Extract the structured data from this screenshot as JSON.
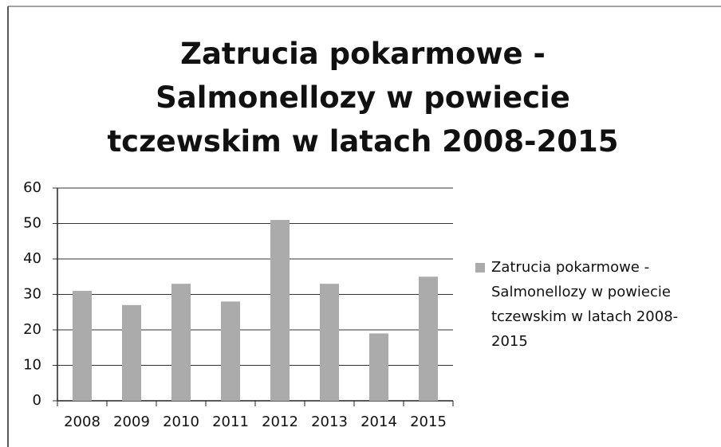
{
  "chart_data": {
    "type": "bar",
    "title": "Zatrucia pokarmowe - Salmonellozy w powiecie tczewskim w latach 2008-2015",
    "categories": [
      "2008",
      "2009",
      "2010",
      "2011",
      "2012",
      "2013",
      "2014",
      "2015"
    ],
    "series": [
      {
        "name": "Zatrucia pokarmowe - Salmonellozy w powiecie tczewskim w latach 2008-2015",
        "color": "#ababab",
        "values": [
          31,
          27,
          33,
          28,
          51,
          33,
          19,
          35
        ]
      }
    ],
    "ylim": [
      0,
      60
    ],
    "yticks": [
      0,
      10,
      20,
      30,
      40,
      50,
      60
    ],
    "grid": true,
    "legend": "right"
  }
}
